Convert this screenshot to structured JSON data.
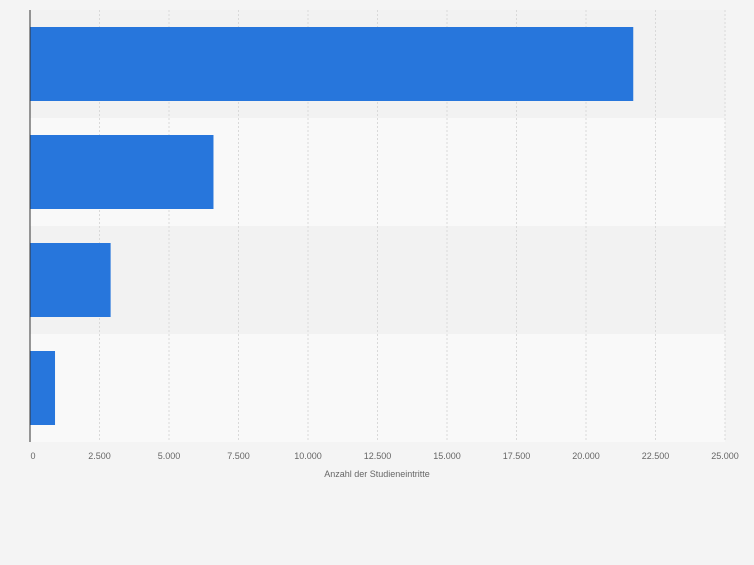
{
  "chart_data": {
    "type": "bar",
    "orientation": "horizontal",
    "categories": [
      "",
      "",
      "",
      ""
    ],
    "values": [
      21700,
      6600,
      2900,
      900
    ],
    "xlabel": "Anzahl der Studieneintritte",
    "ylabel": "",
    "xlim": [
      0,
      25000
    ],
    "xticks": [
      0,
      2500,
      5000,
      7500,
      10000,
      12500,
      15000,
      17500,
      20000,
      22500,
      25000
    ],
    "xtick_labels": [
      "0",
      "2.500",
      "5.000",
      "7.500",
      "10.000",
      "12.500",
      "15.000",
      "17.500",
      "20.000",
      "22.500",
      "25.000"
    ],
    "grid": true,
    "legend": "none",
    "colors": {
      "bar": "#2776dc",
      "band_dark": "#f2f2f2",
      "band_light": "#f9f9f9",
      "grid": "#d9d9d9",
      "axis": "#333333",
      "tick_text": "#666666",
      "page_bg": "#f4f4f4"
    }
  }
}
